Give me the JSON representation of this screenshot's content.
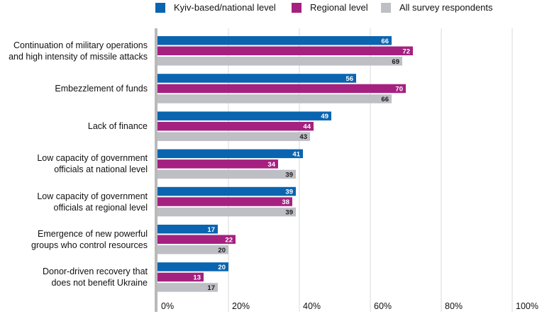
{
  "colors": {
    "kyiv": "#0a64b0",
    "regional": "#a52180",
    "all": "#bdbfc4",
    "grid": "#d9d9d9",
    "axis": "#b9b9b9"
  },
  "legend": [
    {
      "name": "Kyiv-based/national level",
      "color": "#0a64b0"
    },
    {
      "name": "Regional level",
      "color": "#a52180"
    },
    {
      "name": "All survey respondents",
      "color": "#bdbfc4"
    }
  ],
  "chart_data": {
    "type": "bar",
    "orientation": "horizontal",
    "categories": [
      [
        "Continuation of military operations",
        "and high intensity of missile attacks"
      ],
      [
        "Embezzlement of funds"
      ],
      [
        "Lack of finance"
      ],
      [
        "Low capacity of government",
        "officials at national level"
      ],
      [
        "Low capacity of government",
        "officials at regional level"
      ],
      [
        "Emergence of new powerful",
        "groups who control resources"
      ],
      [
        "Donor-driven recovery that",
        "does not benefit Ukraine"
      ]
    ],
    "series": [
      {
        "name": "Kyiv-based/national level",
        "values": [
          66,
          56,
          49,
          41,
          39,
          17,
          20
        ]
      },
      {
        "name": "Regional level",
        "values": [
          72,
          70,
          44,
          34,
          38,
          22,
          13
        ]
      },
      {
        "name": "All survey respondents",
        "values": [
          69,
          66,
          43,
          39,
          39,
          20,
          17
        ]
      }
    ],
    "xlim": [
      0,
      100
    ],
    "xticks": [
      "0%",
      "20%",
      "40%",
      "60%",
      "80%",
      "100%"
    ],
    "grid": true,
    "legend_position": "top"
  }
}
